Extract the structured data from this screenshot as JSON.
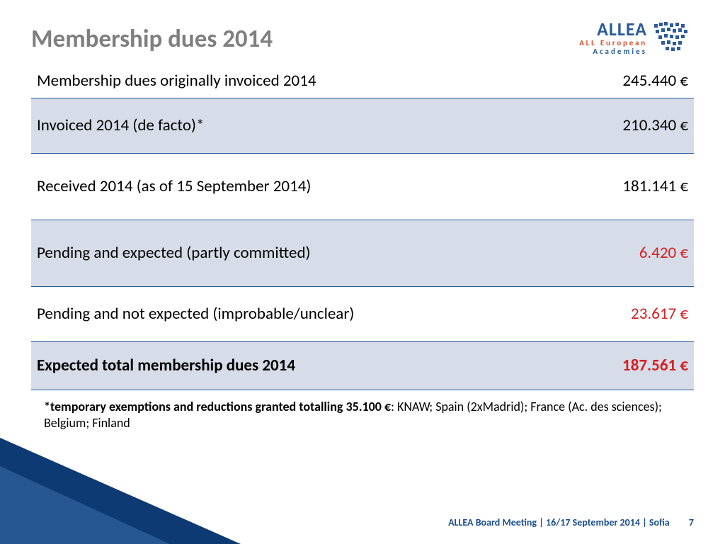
{
  "title": "Membership dues 2014",
  "logo": {
    "main": "ALLEA",
    "line1": "ALL European",
    "line2": "Academies"
  },
  "table": {
    "rows": [
      {
        "label": "Membership dues originally invoiced 2014",
        "value": "245.440 €",
        "shaded": false,
        "value_color": "#000000",
        "bold": false,
        "row_height_class": "r0"
      },
      {
        "label": "Invoiced 2014 (de facto)*",
        "value": "210.340 €",
        "shaded": true,
        "value_color": "#000000",
        "bold": false,
        "row_height_class": "r1"
      },
      {
        "label": "Received 2014 (as of 15 September 2014)",
        "value": "181.141 €",
        "shaded": false,
        "value_color": "#000000",
        "bold": false,
        "row_height_class": "r2"
      },
      {
        "label": "Pending and expected (partly committed)",
        "value": "6.420 €",
        "shaded": true,
        "value_color": "#d62020",
        "bold": false,
        "row_height_class": "r3"
      },
      {
        "label": "Pending and not expected (improbable/unclear)",
        "value": "23.617 €",
        "shaded": false,
        "value_color": "#d62020",
        "bold": false,
        "row_height_class": "r4"
      },
      {
        "label": "Expected total membership dues 2014",
        "value": "187.561 €",
        "shaded": true,
        "value_color": "#d62020",
        "bold": true,
        "row_height_class": "r5"
      }
    ],
    "border_color": "#2a5a9a",
    "shaded_bg": "#d6dde8",
    "font_size": 23
  },
  "footnote": {
    "bold": "*temporary exemptions and reductions granted totalling 35.100 €",
    "rest": ": KNAW; Spain (2xMadrid); France (Ac. des sciences); Belgium; Finland"
  },
  "footer": {
    "text": "ALLEA Board Meeting | 16/17 September  2014 | Sofia",
    "page": "7"
  },
  "colors": {
    "title_gray": "#7f7f7f",
    "brand_blue": "#2a5a9a",
    "brand_orange": "#d94a2a",
    "red": "#d62020",
    "corner_dark": "#0d3a72",
    "corner_light": "#5a8fc8"
  }
}
